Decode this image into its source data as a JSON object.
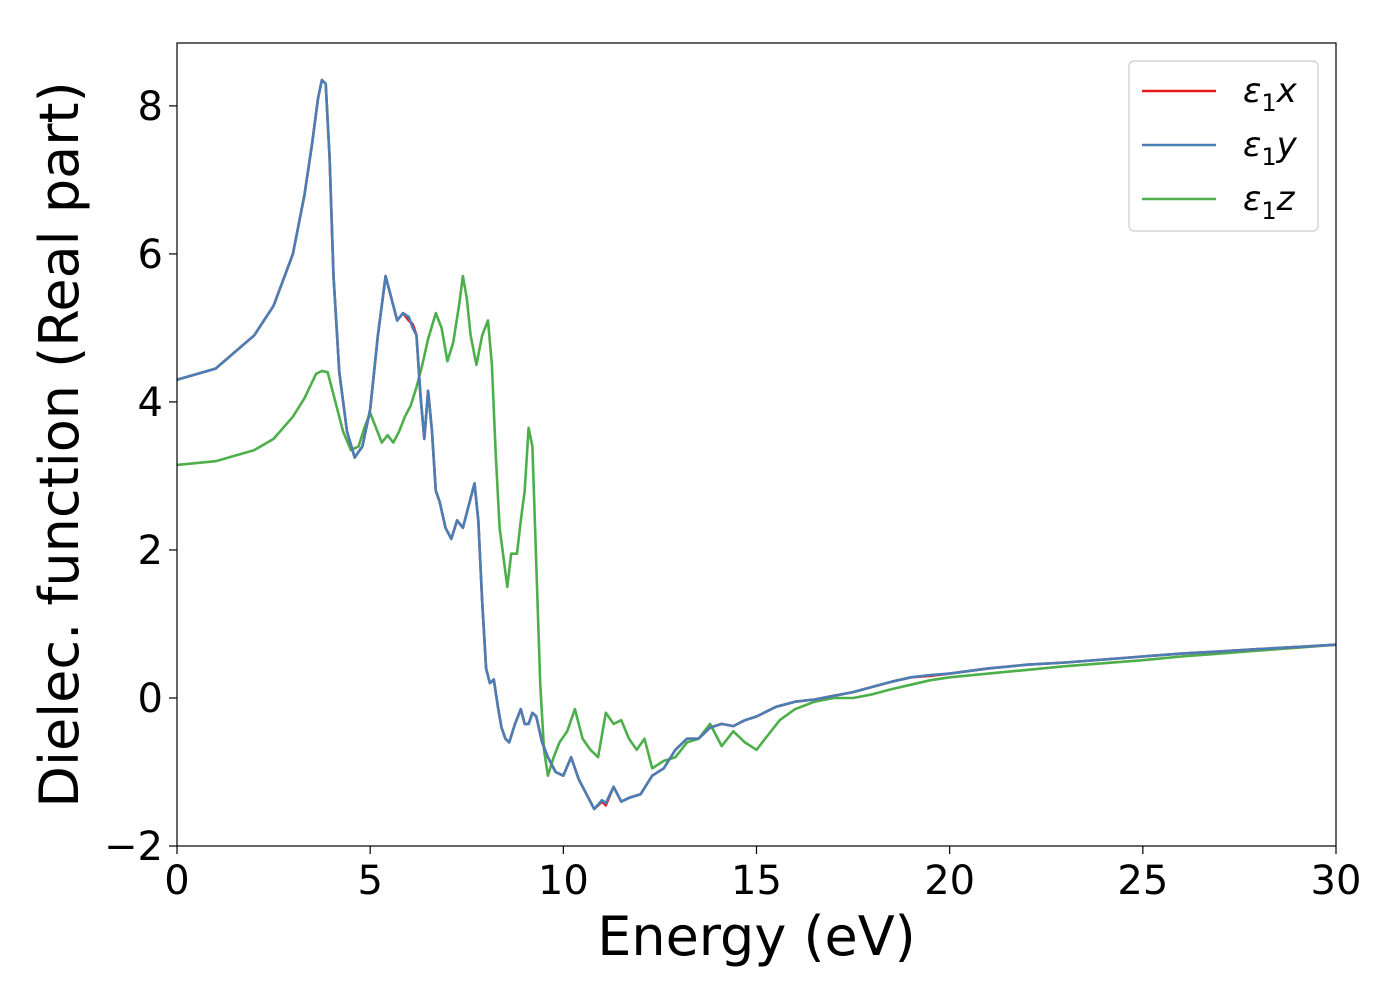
{
  "chart_data": {
    "type": "line",
    "title": "",
    "xlabel": "Energy (eV)",
    "ylabel": "Dielec. function (Real part)",
    "xlim": [
      0,
      30
    ],
    "ylim": [
      -2,
      8.85
    ],
    "xticks": [
      0,
      5,
      10,
      15,
      20,
      25,
      30
    ],
    "yticks": [
      -2,
      0,
      2,
      4,
      6,
      8
    ],
    "xtick_labels": [
      "0",
      "5",
      "10",
      "15",
      "20",
      "25",
      "30"
    ],
    "ytick_labels": [
      "−2",
      "0",
      "2",
      "4",
      "6",
      "8"
    ],
    "grid": false,
    "legend_position": "top-right",
    "series": [
      {
        "name": "ε₁x",
        "legend_main": "ε",
        "legend_sub": "1",
        "legend_var": "x",
        "color": "#e41a1c",
        "x": [
          0,
          1,
          2,
          2.5,
          3,
          3.3,
          3.5,
          3.65,
          3.75,
          3.85,
          3.95,
          4.05,
          4.2,
          4.4,
          4.6,
          4.8,
          5.0,
          5.2,
          5.4,
          5.55,
          5.7,
          5.85,
          6.0,
          6.1,
          6.2,
          6.3,
          6.4,
          6.5,
          6.6,
          6.7,
          6.8,
          6.95,
          7.1,
          7.25,
          7.4,
          7.55,
          7.7,
          7.8,
          7.9,
          8.0,
          8.1,
          8.2,
          8.3,
          8.4,
          8.5,
          8.6,
          8.75,
          8.9,
          9.0,
          9.1,
          9.2,
          9.3,
          9.45,
          9.6,
          9.8,
          10.0,
          10.2,
          10.4,
          10.6,
          10.8,
          11.0,
          11.1,
          11.3,
          11.5,
          11.7,
          12.0,
          12.3,
          12.6,
          12.9,
          13.2,
          13.5,
          13.8,
          14.1,
          14.4,
          14.7,
          15.0,
          15.5,
          16.0,
          16.5,
          17.0,
          17.5,
          18.0,
          18.5,
          19.0,
          19.5,
          20.0,
          21.0,
          22.0,
          23.0,
          24.0,
          25.0,
          26.0,
          27.0,
          28.0,
          29.0,
          30.0
        ],
        "y": [
          4.3,
          4.45,
          4.9,
          5.3,
          6.0,
          6.8,
          7.5,
          8.1,
          8.35,
          8.3,
          7.3,
          5.7,
          4.4,
          3.6,
          3.25,
          3.4,
          3.9,
          4.9,
          5.7,
          5.4,
          5.1,
          5.2,
          5.1,
          5.05,
          4.9,
          4.1,
          3.5,
          4.15,
          3.6,
          2.8,
          2.65,
          2.3,
          2.15,
          2.4,
          2.3,
          2.6,
          2.9,
          2.4,
          1.3,
          0.4,
          0.2,
          0.25,
          -0.1,
          -0.4,
          -0.55,
          -0.6,
          -0.35,
          -0.15,
          -0.35,
          -0.35,
          -0.2,
          -0.25,
          -0.6,
          -0.8,
          -1.0,
          -1.05,
          -0.8,
          -1.1,
          -1.3,
          -1.5,
          -1.4,
          -1.45,
          -1.2,
          -1.4,
          -1.35,
          -1.3,
          -1.05,
          -0.95,
          -0.7,
          -0.55,
          -0.55,
          -0.4,
          -0.35,
          -0.38,
          -0.3,
          -0.25,
          -0.12,
          -0.05,
          -0.02,
          0.03,
          0.08,
          0.15,
          0.22,
          0.28,
          0.3,
          0.33,
          0.4,
          0.45,
          0.48,
          0.52,
          0.56,
          0.6,
          0.63,
          0.66,
          0.69,
          0.72
        ]
      },
      {
        "name": "ε₁y",
        "legend_main": "ε",
        "legend_sub": "1",
        "legend_var": "y",
        "color": "#4a7fb5",
        "x": [
          0,
          1,
          2,
          2.5,
          3,
          3.3,
          3.5,
          3.65,
          3.75,
          3.85,
          3.95,
          4.05,
          4.2,
          4.4,
          4.6,
          4.8,
          5.0,
          5.2,
          5.4,
          5.55,
          5.7,
          5.85,
          6.0,
          6.1,
          6.2,
          6.3,
          6.4,
          6.5,
          6.6,
          6.7,
          6.8,
          6.95,
          7.1,
          7.25,
          7.4,
          7.55,
          7.7,
          7.8,
          7.9,
          8.0,
          8.1,
          8.2,
          8.3,
          8.4,
          8.5,
          8.6,
          8.75,
          8.9,
          9.0,
          9.1,
          9.2,
          9.3,
          9.45,
          9.6,
          9.8,
          10.0,
          10.2,
          10.4,
          10.6,
          10.8,
          11.0,
          11.1,
          11.3,
          11.5,
          11.7,
          12.0,
          12.3,
          12.6,
          12.9,
          13.2,
          13.5,
          13.8,
          14.1,
          14.4,
          14.7,
          15.0,
          15.5,
          16.0,
          16.5,
          17.0,
          17.5,
          18.0,
          18.5,
          19.0,
          19.5,
          20.0,
          21.0,
          22.0,
          23.0,
          24.0,
          25.0,
          26.0,
          27.0,
          28.0,
          29.0,
          30.0
        ],
        "y": [
          4.3,
          4.45,
          4.9,
          5.3,
          6.0,
          6.8,
          7.5,
          8.1,
          8.35,
          8.3,
          7.3,
          5.7,
          4.4,
          3.6,
          3.25,
          3.4,
          3.9,
          4.9,
          5.7,
          5.4,
          5.1,
          5.2,
          5.15,
          5.0,
          4.9,
          4.1,
          3.5,
          4.15,
          3.6,
          2.8,
          2.65,
          2.3,
          2.15,
          2.4,
          2.3,
          2.6,
          2.9,
          2.4,
          1.3,
          0.4,
          0.2,
          0.25,
          -0.1,
          -0.4,
          -0.55,
          -0.6,
          -0.35,
          -0.15,
          -0.35,
          -0.35,
          -0.2,
          -0.25,
          -0.6,
          -0.8,
          -1.0,
          -1.05,
          -0.8,
          -1.1,
          -1.3,
          -1.5,
          -1.38,
          -1.42,
          -1.2,
          -1.4,
          -1.35,
          -1.3,
          -1.05,
          -0.95,
          -0.7,
          -0.55,
          -0.55,
          -0.4,
          -0.35,
          -0.38,
          -0.3,
          -0.25,
          -0.12,
          -0.05,
          -0.02,
          0.03,
          0.08,
          0.15,
          0.22,
          0.28,
          0.31,
          0.33,
          0.4,
          0.45,
          0.48,
          0.52,
          0.56,
          0.6,
          0.63,
          0.66,
          0.69,
          0.72
        ]
      },
      {
        "name": "ε₁z",
        "legend_main": "ε",
        "legend_sub": "1",
        "legend_var": "z",
        "color": "#4daf4a",
        "x": [
          0,
          1,
          2,
          2.5,
          3,
          3.3,
          3.6,
          3.75,
          3.9,
          4.1,
          4.3,
          4.5,
          4.7,
          4.85,
          5.0,
          5.15,
          5.3,
          5.45,
          5.6,
          5.75,
          5.9,
          6.05,
          6.2,
          6.35,
          6.5,
          6.7,
          6.85,
          7.0,
          7.15,
          7.3,
          7.4,
          7.5,
          7.6,
          7.75,
          7.9,
          8.05,
          8.15,
          8.25,
          8.35,
          8.45,
          8.55,
          8.65,
          8.8,
          8.9,
          9.0,
          9.1,
          9.2,
          9.3,
          9.4,
          9.5,
          9.6,
          9.75,
          9.9,
          10.1,
          10.3,
          10.5,
          10.7,
          10.9,
          11.1,
          11.3,
          11.5,
          11.7,
          11.9,
          12.1,
          12.3,
          12.6,
          12.9,
          13.2,
          13.5,
          13.8,
          14.1,
          14.4,
          14.7,
          15.0,
          15.3,
          15.6,
          16.0,
          16.5,
          17.0,
          17.5,
          18.0,
          18.5,
          19.0,
          19.5,
          20.0,
          21.0,
          22.0,
          23.0,
          24.0,
          25.0,
          26.0,
          27.0,
          28.0,
          29.0,
          30.0
        ],
        "y": [
          3.15,
          3.2,
          3.35,
          3.5,
          3.8,
          4.05,
          4.38,
          4.42,
          4.4,
          4.0,
          3.6,
          3.35,
          3.4,
          3.65,
          3.85,
          3.65,
          3.45,
          3.55,
          3.45,
          3.6,
          3.8,
          3.95,
          4.2,
          4.5,
          4.85,
          5.2,
          5.0,
          4.55,
          4.8,
          5.3,
          5.7,
          5.4,
          4.9,
          4.5,
          4.9,
          5.1,
          4.5,
          3.3,
          2.3,
          1.9,
          1.5,
          1.95,
          1.95,
          2.4,
          2.8,
          3.65,
          3.4,
          1.8,
          0.2,
          -0.7,
          -1.05,
          -0.8,
          -0.6,
          -0.45,
          -0.15,
          -0.55,
          -0.7,
          -0.8,
          -0.2,
          -0.35,
          -0.3,
          -0.55,
          -0.7,
          -0.55,
          -0.95,
          -0.85,
          -0.8,
          -0.6,
          -0.55,
          -0.35,
          -0.65,
          -0.45,
          -0.6,
          -0.7,
          -0.5,
          -0.3,
          -0.15,
          -0.05,
          0.0,
          0.0,
          0.05,
          0.12,
          0.18,
          0.24,
          0.28,
          0.33,
          0.38,
          0.43,
          0.47,
          0.51,
          0.56,
          0.6,
          0.64,
          0.68,
          0.72
        ]
      }
    ]
  }
}
